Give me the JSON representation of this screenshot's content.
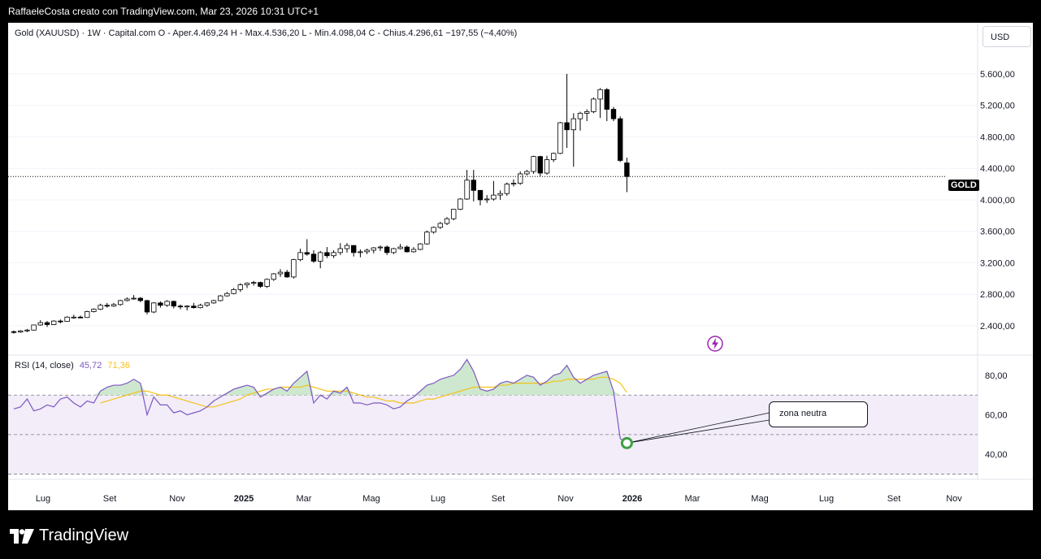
{
  "header": {
    "text": "RaffaeleCosta creato con TradingView.com, Mar 23, 2026 10:31 UTC+1"
  },
  "legend": {
    "text": "Gold (XAUUSD) · 1W · Capital.com  O - Aper.4.469,24  H - Max.4.536,20  L - Min.4.098,04  C - Chius.4.296,61  −197,55 (−4,40%)"
  },
  "currency": "USD",
  "rsi_legend": {
    "label": "RSI (14, close)",
    "value": "45,72",
    "ma_value": "71,36"
  },
  "price_tag": "GOLD",
  "annotation": "zona neutra",
  "logo": {
    "text": "TradingView"
  },
  "colors": {
    "rsi": "#7e57c2",
    "rsi_ma": "#f4c21a",
    "rsi_band": "#ede7f6",
    "candle_up": "#ffffff",
    "candle_down": "#000000",
    "marker": "#43a047",
    "flash": "#9c27b0"
  },
  "chart_data": [
    {
      "type": "candlestick",
      "title": "Gold (XAUUSD) · 1W · Capital.com",
      "y_ticks": [
        "2.400,00",
        "2.800,00",
        "3.200,00",
        "3.600,00",
        "4.000,00",
        "4.400,00",
        "4.800,00",
        "5.200,00",
        "5.600,00"
      ],
      "ylim": [
        2100,
        5940
      ],
      "x_ticks": [
        "Lug",
        "Set",
        "Nov",
        "2025",
        "Mar",
        "Mag",
        "Lug",
        "Set",
        "Nov",
        "2026",
        "Mar",
        "Mag",
        "Lug",
        "Set",
        "Nov"
      ],
      "last_close": 4296.61,
      "ohlc": [
        [
          2325,
          2340,
          2300,
          2320
        ],
        [
          2320,
          2345,
          2310,
          2335
        ],
        [
          2335,
          2360,
          2320,
          2345
        ],
        [
          2345,
          2415,
          2340,
          2410
        ],
        [
          2410,
          2470,
          2400,
          2440
        ],
        [
          2440,
          2460,
          2385,
          2415
        ],
        [
          2415,
          2470,
          2410,
          2460
        ],
        [
          2460,
          2480,
          2430,
          2455
        ],
        [
          2455,
          2520,
          2450,
          2510
        ],
        [
          2510,
          2540,
          2490,
          2510
        ],
        [
          2510,
          2530,
          2495,
          2505
        ],
        [
          2505,
          2590,
          2500,
          2580
        ],
        [
          2580,
          2620,
          2570,
          2610
        ],
        [
          2610,
          2680,
          2600,
          2660
        ],
        [
          2660,
          2690,
          2630,
          2650
        ],
        [
          2650,
          2690,
          2640,
          2670
        ],
        [
          2670,
          2730,
          2655,
          2720
        ],
        [
          2720,
          2760,
          2710,
          2740
        ],
        [
          2740,
          2790,
          2730,
          2750
        ],
        [
          2750,
          2765,
          2700,
          2720
        ],
        [
          2720,
          2730,
          2545,
          2575
        ],
        [
          2575,
          2700,
          2560,
          2690
        ],
        [
          2690,
          2710,
          2630,
          2660
        ],
        [
          2660,
          2725,
          2640,
          2710
        ],
        [
          2710,
          2720,
          2620,
          2650
        ],
        [
          2650,
          2670,
          2610,
          2640
        ],
        [
          2640,
          2660,
          2595,
          2650
        ],
        [
          2650,
          2690,
          2620,
          2630
        ],
        [
          2630,
          2680,
          2620,
          2660
        ],
        [
          2660,
          2700,
          2640,
          2690
        ],
        [
          2690,
          2730,
          2680,
          2720
        ],
        [
          2720,
          2790,
          2710,
          2780
        ],
        [
          2780,
          2830,
          2770,
          2810
        ],
        [
          2810,
          2880,
          2800,
          2860
        ],
        [
          2860,
          2940,
          2830,
          2920
        ],
        [
          2920,
          2950,
          2880,
          2940
        ],
        [
          2940,
          2970,
          2910,
          2950
        ],
        [
          2950,
          2960,
          2880,
          2900
        ],
        [
          2900,
          3000,
          2880,
          2990
        ],
        [
          2990,
          3070,
          2970,
          3060
        ],
        [
          3060,
          3120,
          3020,
          3080
        ],
        [
          3080,
          3110,
          3010,
          3020
        ],
        [
          3020,
          3250,
          3000,
          3240
        ],
        [
          3240,
          3380,
          3220,
          3330
        ],
        [
          3330,
          3500,
          3290,
          3310
        ],
        [
          3310,
          3360,
          3200,
          3220
        ],
        [
          3220,
          3350,
          3130,
          3330
        ],
        [
          3330,
          3400,
          3260,
          3290
        ],
        [
          3290,
          3360,
          3260,
          3330
        ],
        [
          3330,
          3450,
          3300,
          3380
        ],
        [
          3380,
          3450,
          3330,
          3420
        ],
        [
          3420,
          3420,
          3280,
          3330
        ],
        [
          3330,
          3370,
          3270,
          3340
        ],
        [
          3340,
          3380,
          3310,
          3360
        ],
        [
          3360,
          3400,
          3320,
          3390
        ],
        [
          3390,
          3420,
          3350,
          3400
        ],
        [
          3400,
          3420,
          3300,
          3330
        ],
        [
          3330,
          3390,
          3310,
          3380
        ],
        [
          3380,
          3440,
          3370,
          3400
        ],
        [
          3400,
          3420,
          3330,
          3340
        ],
        [
          3340,
          3400,
          3330,
          3370
        ],
        [
          3370,
          3450,
          3360,
          3440
        ],
        [
          3440,
          3610,
          3430,
          3590
        ],
        [
          3590,
          3660,
          3570,
          3650
        ],
        [
          3650,
          3720,
          3630,
          3700
        ],
        [
          3700,
          3780,
          3680,
          3760
        ],
        [
          3760,
          3880,
          3740,
          3880
        ],
        [
          3880,
          4020,
          3870,
          4010
        ],
        [
          4010,
          4380,
          4000,
          4250
        ],
        [
          4250,
          4380,
          3980,
          4120
        ],
        [
          4120,
          4120,
          3930,
          4000
        ],
        [
          4000,
          4060,
          3960,
          4010
        ],
        [
          4010,
          4240,
          3990,
          4060
        ],
        [
          4060,
          4120,
          4000,
          4080
        ],
        [
          4080,
          4220,
          4050,
          4200
        ],
        [
          4200,
          4260,
          4170,
          4210
        ],
        [
          4210,
          4360,
          4190,
          4330
        ],
        [
          4330,
          4380,
          4310,
          4360
        ],
        [
          4360,
          4560,
          4330,
          4550
        ],
        [
          4550,
          4560,
          4300,
          4340
        ],
        [
          4340,
          4560,
          4320,
          4510
        ],
        [
          4510,
          4600,
          4480,
          4590
        ],
        [
          4590,
          4990,
          4580,
          4980
        ],
        [
          4980,
          5600,
          4660,
          4890
        ],
        [
          4890,
          5100,
          4420,
          5030
        ],
        [
          5030,
          5120,
          4880,
          5100
        ],
        [
          5100,
          5150,
          5000,
          5120
        ],
        [
          5120,
          5300,
          5100,
          5280
        ],
        [
          5280,
          5420,
          5040,
          5400
        ],
        [
          5400,
          5420,
          5000,
          5150
        ],
        [
          5150,
          5180,
          5000,
          5030
        ],
        [
          5030,
          5060,
          4480,
          4500
        ],
        [
          4469.24,
          4536.2,
          4098.04,
          4296.61
        ]
      ]
    },
    {
      "type": "line",
      "title": "RSI (14, close)",
      "y_ticks": [
        "40,00",
        "60,00",
        "80,00"
      ],
      "ylim": [
        29,
        89
      ],
      "bands": {
        "upper": 70,
        "middle": 50,
        "lower": 30
      },
      "series": [
        {
          "name": "RSI",
          "values": [
            63,
            64,
            68,
            62,
            63,
            65,
            64,
            68,
            69,
            66,
            64,
            67,
            66,
            72,
            74,
            75,
            75,
            76,
            78,
            76,
            60,
            69,
            65,
            65,
            61,
            62,
            60,
            61,
            62,
            64,
            67,
            69,
            71,
            73,
            74,
            75,
            74,
            69,
            71,
            73,
            74,
            72,
            76,
            79,
            82,
            66,
            70,
            68,
            72,
            71,
            74,
            66,
            66,
            65,
            66,
            66,
            65,
            63,
            64,
            67,
            69,
            72,
            75,
            76,
            78,
            79,
            80,
            83,
            88,
            82,
            73,
            72,
            73,
            76,
            77,
            76,
            78,
            80,
            79,
            75,
            77,
            80,
            81,
            85,
            79,
            76,
            78,
            80,
            81,
            82,
            72,
            48,
            45.72
          ]
        },
        {
          "name": "RSI MA",
          "values": [
            null,
            null,
            null,
            null,
            null,
            null,
            null,
            null,
            null,
            null,
            null,
            null,
            null,
            66,
            67,
            68,
            69,
            70,
            71,
            72,
            72,
            71,
            70,
            70,
            69,
            68,
            67,
            66,
            65,
            64,
            64,
            65,
            66,
            67,
            68,
            70,
            71,
            72,
            73,
            73,
            74,
            74,
            74,
            74,
            75,
            74,
            73,
            72,
            72,
            72,
            72,
            71,
            70,
            69,
            69,
            68,
            67,
            67,
            66,
            66,
            66,
            67,
            68,
            68,
            69,
            70,
            71,
            72,
            73,
            74,
            74,
            74,
            74,
            75,
            75,
            76,
            76,
            76,
            76,
            76,
            76,
            77,
            77,
            78,
            78,
            78,
            78,
            78,
            79,
            79,
            78,
            76,
            71.36
          ]
        }
      ]
    }
  ]
}
